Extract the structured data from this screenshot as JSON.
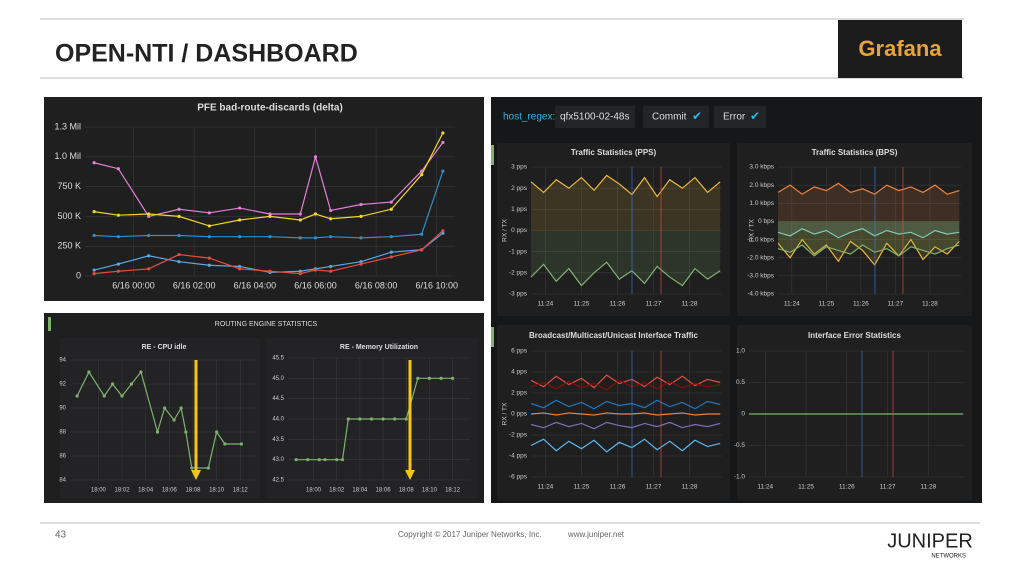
{
  "slide": {
    "title": "OPEN-NTI / DASHBOARD",
    "logo": "Grafana",
    "page_number": "43",
    "copyright": "Copyright © 2017 Juniper Networks, Inc.",
    "url": "www.juniper.net",
    "brand": "JUNIPER",
    "brand_sub": "NETWORKS"
  },
  "dashboard": {
    "filter_label": "host_regex:",
    "filter_value": "qfx5100-02-48s",
    "toggles": [
      "Commit",
      "Error"
    ],
    "section": "ROUTING ENGINE STATISTICS"
  },
  "chart_data": [
    {
      "type": "line",
      "title": "PFE bad-route-discards (delta)",
      "points": true,
      "x": [
        -1.3,
        -0.5,
        0.5,
        1.5,
        2.5,
        3.5,
        4.5,
        5.5,
        6.0,
        6.5,
        7.5,
        8.5,
        9.5,
        10.2
      ],
      "series": [
        {
          "color": "#e27fd6",
          "values": [
            950000,
            900000,
            500000,
            560000,
            530000,
            570000,
            520000,
            520000,
            1000000,
            550000,
            600000,
            620000,
            880000,
            1120000
          ]
        },
        {
          "color": "#f2d62a",
          "values": [
            540000,
            510000,
            520000,
            500000,
            420000,
            470000,
            500000,
            470000,
            520000,
            480000,
            500000,
            560000,
            850000,
            1200000
          ]
        },
        {
          "color": "#2f8fc7",
          "values": [
            340000,
            330000,
            340000,
            340000,
            330000,
            330000,
            330000,
            320000,
            320000,
            330000,
            320000,
            330000,
            350000,
            880000
          ]
        },
        {
          "color": "#5aa9e6",
          "values": [
            50000,
            100000,
            170000,
            120000,
            90000,
            80000,
            30000,
            40000,
            60000,
            80000,
            120000,
            200000,
            220000,
            360000
          ]
        },
        {
          "color": "#e24d42",
          "values": [
            20000,
            40000,
            60000,
            180000,
            150000,
            60000,
            40000,
            20000,
            50000,
            40000,
            100000,
            160000,
            220000,
            380000
          ]
        }
      ],
      "xlim": [
        -1.6,
        10.6
      ],
      "xticks": [
        {
          "value": 0,
          "label": "6/16 00:00"
        },
        {
          "value": 2,
          "label": "6/16 02:00"
        },
        {
          "value": 4,
          "label": "6/16 04:00"
        },
        {
          "value": 6,
          "label": "6/16 06:00"
        },
        {
          "value": 8,
          "label": "6/16 08:00"
        },
        {
          "value": 10,
          "label": "6/16 10:00"
        }
      ],
      "ylim": [
        0,
        1250000
      ],
      "yticks": [
        0,
        {
          "value": 250000,
          "label": "250 K"
        },
        {
          "value": 500000,
          "label": "500 K"
        },
        {
          "value": 750000,
          "label": "750 K"
        },
        {
          "value": 1000000,
          "label": "1.0 Mil"
        },
        {
          "value": 1250000,
          "label": "1.3 Mil"
        }
      ],
      "grid": true
    },
    {
      "type": "line",
      "title": "RE - CPU idle",
      "points": true,
      "x": [
        -1.8,
        -0.8,
        0.5,
        1.2,
        2,
        2.8,
        3.6,
        5,
        5.6,
        6.4,
        7,
        7.4,
        7.9,
        9.3,
        10,
        10.7,
        12.1
      ],
      "series": [
        {
          "color": "#7eb26d",
          "values": [
            91,
            93,
            91,
            92,
            91,
            92,
            93,
            88,
            90,
            89,
            90,
            88,
            85,
            85,
            88,
            87,
            87
          ]
        }
      ],
      "xlim": [
        -2.4,
        13.5
      ],
      "xticks": [
        {
          "value": 0,
          "label": "18:00"
        },
        {
          "value": 2,
          "label": "18:02"
        },
        {
          "value": 4,
          "label": "18:04"
        },
        {
          "value": 6,
          "label": "18:06"
        },
        {
          "value": 8,
          "label": "18:08"
        },
        {
          "value": 10,
          "label": "18:10"
        },
        {
          "value": 12,
          "label": "18:12"
        }
      ],
      "ylim": [
        84,
        94
      ],
      "yticks": [
        84,
        86,
        88,
        90,
        92,
        94
      ],
      "grid": true
    },
    {
      "type": "line",
      "title": "RE - Memory Utilization",
      "points": true,
      "x": [
        -1.5,
        -0.5,
        0.5,
        1,
        2,
        2.5,
        3,
        4,
        5,
        6,
        7,
        8,
        9,
        10,
        11,
        12
      ],
      "series": [
        {
          "color": "#7eb26d",
          "values": [
            43,
            43,
            43,
            43,
            43,
            43,
            44,
            44,
            44,
            44,
            44,
            44,
            45,
            45,
            45,
            45
          ]
        }
      ],
      "xlim": [
        -2.2,
        13.5
      ],
      "xticks": [
        {
          "value": 0,
          "label": "18:00"
        },
        {
          "value": 2,
          "label": "18:02"
        },
        {
          "value": 4,
          "label": "18:04"
        },
        {
          "value": 6,
          "label": "18:06"
        },
        {
          "value": 8,
          "label": "18:08"
        },
        {
          "value": 10,
          "label": "18:10"
        },
        {
          "value": 12,
          "label": "18:12"
        }
      ],
      "ylim": [
        42.5,
        45.5
      ],
      "yticks": [
        42.5,
        {
          "value": 43,
          "label": "43.0"
        },
        43.5,
        {
          "value": 44,
          "label": "44.0"
        },
        44.5,
        {
          "value": 45,
          "label": "45.0"
        },
        45.5
      ],
      "grid": true
    },
    {
      "type": "line",
      "title": "Traffic Statistics (PPS)",
      "ylabel": "RX / TX",
      "fill": true,
      "x": [
        -0.4,
        -0.05,
        0.3,
        0.65,
        1,
        1.35,
        1.7,
        2.05,
        2.4,
        2.75,
        3.1,
        3.45,
        3.8,
        4.15,
        4.5,
        4.85
      ],
      "series": [
        {
          "color": "#eab839",
          "values": [
            2.3,
            1.8,
            2.4,
            2.0,
            2.5,
            1.9,
            2.6,
            2.2,
            1.7,
            2.5,
            1.6,
            2.4,
            2.0,
            2.5,
            1.8,
            2.3
          ]
        },
        {
          "color": "#7eb26d",
          "values": [
            -2.2,
            -1.6,
            -2.4,
            -1.8,
            -2.6,
            -2.0,
            -1.5,
            -2.3,
            -1.9,
            -2.5,
            -1.7,
            -2.2,
            -2.6,
            -1.8,
            -2.3,
            -1.9
          ]
        }
      ],
      "xlim": [
        -0.4,
        4.9
      ],
      "xticks": [
        {
          "value": 0,
          "label": "11:24"
        },
        {
          "value": 1,
          "label": "11:25"
        },
        {
          "value": 2,
          "label": "11:26"
        },
        {
          "value": 3,
          "label": "11:27"
        },
        {
          "value": 4,
          "label": "11:28"
        }
      ],
      "ylim": [
        -3,
        3
      ],
      "yticks": [
        {
          "value": 3,
          "label": "3 pps"
        },
        {
          "value": 2,
          "label": "2 pps"
        },
        {
          "value": 1,
          "label": "1 pps"
        },
        {
          "value": 0,
          "label": "0 pps"
        },
        {
          "value": -1,
          "label": "-1 pps"
        },
        {
          "value": -2,
          "label": "-2 pps"
        },
        {
          "value": -3,
          "label": "-3 pps"
        }
      ],
      "grid": true
    },
    {
      "type": "line",
      "title": "Traffic Statistics (BPS)",
      "ylabel": "RX / TX",
      "fill": true,
      "x": [
        -0.4,
        -0.05,
        0.3,
        0.65,
        1,
        1.35,
        1.7,
        2.05,
        2.4,
        2.75,
        3.1,
        3.45,
        3.8,
        4.15,
        4.5,
        4.85
      ],
      "series": [
        {
          "color": "#ef843c",
          "values": [
            1.6,
            2.0,
            1.5,
            1.9,
            1.7,
            2.1,
            1.6,
            1.8,
            1.5,
            2.0,
            1.7,
            1.9,
            1.6,
            2.0,
            1.5,
            1.7
          ]
        },
        {
          "color": "#6ed0e0",
          "values": [
            -0.6,
            -0.8,
            -0.4,
            -0.7,
            -0.5,
            -0.9,
            -0.6,
            -0.4,
            -0.8,
            -0.5,
            -0.7,
            -0.6,
            -0.9,
            -0.5,
            -0.7,
            -0.6
          ]
        },
        {
          "color": "#eab839",
          "values": [
            -1.2,
            -2.0,
            -1.0,
            -1.8,
            -1.3,
            -2.2,
            -1.1,
            -1.6,
            -2.4,
            -1.2,
            -1.9,
            -1.0,
            -2.1,
            -1.4,
            -1.8,
            -1.1
          ]
        },
        {
          "color": "#7eb26d",
          "values": [
            -1.5,
            -1.7,
            -1.3,
            -1.9,
            -1.4,
            -1.6,
            -1.8,
            -1.3,
            -1.7,
            -1.5,
            -1.9,
            -1.4,
            -1.6,
            -1.8,
            -1.5,
            -1.3
          ]
        }
      ],
      "xlim": [
        -0.4,
        4.9
      ],
      "xticks": [
        {
          "value": 0,
          "label": "11:24"
        },
        {
          "value": 1,
          "label": "11:25"
        },
        {
          "value": 2,
          "label": "11:26"
        },
        {
          "value": 3,
          "label": "11:27"
        },
        {
          "value": 4,
          "label": "11:28"
        }
      ],
      "ylim": [
        -4,
        3
      ],
      "yticks": [
        {
          "value": 3,
          "label": "3.0 kbps"
        },
        {
          "value": 2,
          "label": "2.0 kbps"
        },
        {
          "value": 1,
          "label": "1.0 kbps"
        },
        {
          "value": 0,
          "label": "0 bps"
        },
        {
          "value": -1,
          "label": "-1.0 kbps"
        },
        {
          "value": -2,
          "label": "-2.0 kbps"
        },
        {
          "value": -3,
          "label": "-3.0 kbps"
        },
        {
          "value": -4,
          "label": "-4.0 kbps"
        }
      ],
      "grid": true
    },
    {
      "type": "line",
      "title": "Broadcast/Multicast/Unicast Interface Traffic",
      "ylabel": "RX / TX",
      "x": [
        -0.4,
        -0.05,
        0.3,
        0.65,
        1,
        1.35,
        1.7,
        2.05,
        2.4,
        2.75,
        3.1,
        3.45,
        3.8,
        4.15,
        4.5,
        4.85
      ],
      "series": [
        {
          "color": "#e24d42",
          "values": [
            3.2,
            2.6,
            3.6,
            2.8,
            3.4,
            2.5,
            3.7,
            2.9,
            3.3,
            2.6,
            3.5,
            2.8,
            3.6,
            2.7,
            3.3,
            3.0
          ]
        },
        {
          "color": "#890f02",
          "values": [
            2.6,
            3.0,
            2.4,
            3.1,
            2.5,
            2.9,
            2.3,
            3.2,
            2.6,
            3.0,
            2.4,
            3.1,
            2.5,
            2.9,
            2.6,
            2.8
          ]
        },
        {
          "color": "#1f78c1",
          "values": [
            1.0,
            0.6,
            1.3,
            0.7,
            1.1,
            0.5,
            1.2,
            0.8,
            1.0,
            0.6,
            1.3,
            0.7,
            1.1,
            0.5,
            1.2,
            0.9
          ]
        },
        {
          "color": "#ef843c",
          "values": [
            0,
            0.1,
            -0.1,
            0.1,
            0,
            -0.1,
            0.1,
            0,
            0,
            0.1,
            -0.1,
            0,
            0.1,
            -0.1,
            0,
            0
          ]
        },
        {
          "color": "#806eb7",
          "values": [
            -1.0,
            -1.3,
            -0.8,
            -1.2,
            -0.9,
            -1.4,
            -0.8,
            -1.1,
            -1.3,
            -0.9,
            -1.2,
            -0.8,
            -1.3,
            -1.0,
            -1.2,
            -0.9
          ]
        },
        {
          "color": "#5fb8f0",
          "values": [
            -3.0,
            -2.4,
            -3.5,
            -2.6,
            -3.3,
            -2.5,
            -3.6,
            -2.7,
            -3.2,
            -2.4,
            -3.4,
            -2.6,
            -3.5,
            -2.5,
            -3.1,
            -2.8
          ]
        }
      ],
      "xlim": [
        -0.4,
        4.9
      ],
      "xticks": [
        {
          "value": 0,
          "label": "11:24"
        },
        {
          "value": 1,
          "label": "11:25"
        },
        {
          "value": 2,
          "label": "11:26"
        },
        {
          "value": 3,
          "label": "11:27"
        },
        {
          "value": 4,
          "label": "11:28"
        }
      ],
      "ylim": [
        -6,
        6
      ],
      "yticks": [
        {
          "value": 6,
          "label": "6 pps"
        },
        {
          "value": 4,
          "label": "4 pps"
        },
        {
          "value": 2,
          "label": "2 pps"
        },
        {
          "value": 0,
          "label": "0 pps"
        },
        {
          "value": -2,
          "label": "-2 pps"
        },
        {
          "value": -4,
          "label": "-4 pps"
        },
        {
          "value": -6,
          "label": "-6 pps"
        }
      ],
      "grid": true
    },
    {
      "type": "line",
      "title": "Interface Error Statistics",
      "x": [
        -0.4,
        4.85
      ],
      "series": [
        {
          "color": "#7eb26d",
          "values": [
            0,
            0
          ]
        }
      ],
      "xlim": [
        -0.4,
        4.9
      ],
      "xticks": [
        {
          "value": 0,
          "label": "11:24"
        },
        {
          "value": 1,
          "label": "11:25"
        },
        {
          "value": 2,
          "label": "11:26"
        },
        {
          "value": 3,
          "label": "11:27"
        },
        {
          "value": 4,
          "label": "11:28"
        }
      ],
      "ylim": [
        -1,
        1
      ],
      "yticks": [
        {
          "value": 1,
          "label": "1.0"
        },
        0.5,
        0,
        -0.5,
        {
          "value": -1,
          "label": "-1.0"
        }
      ],
      "grid": true
    }
  ]
}
